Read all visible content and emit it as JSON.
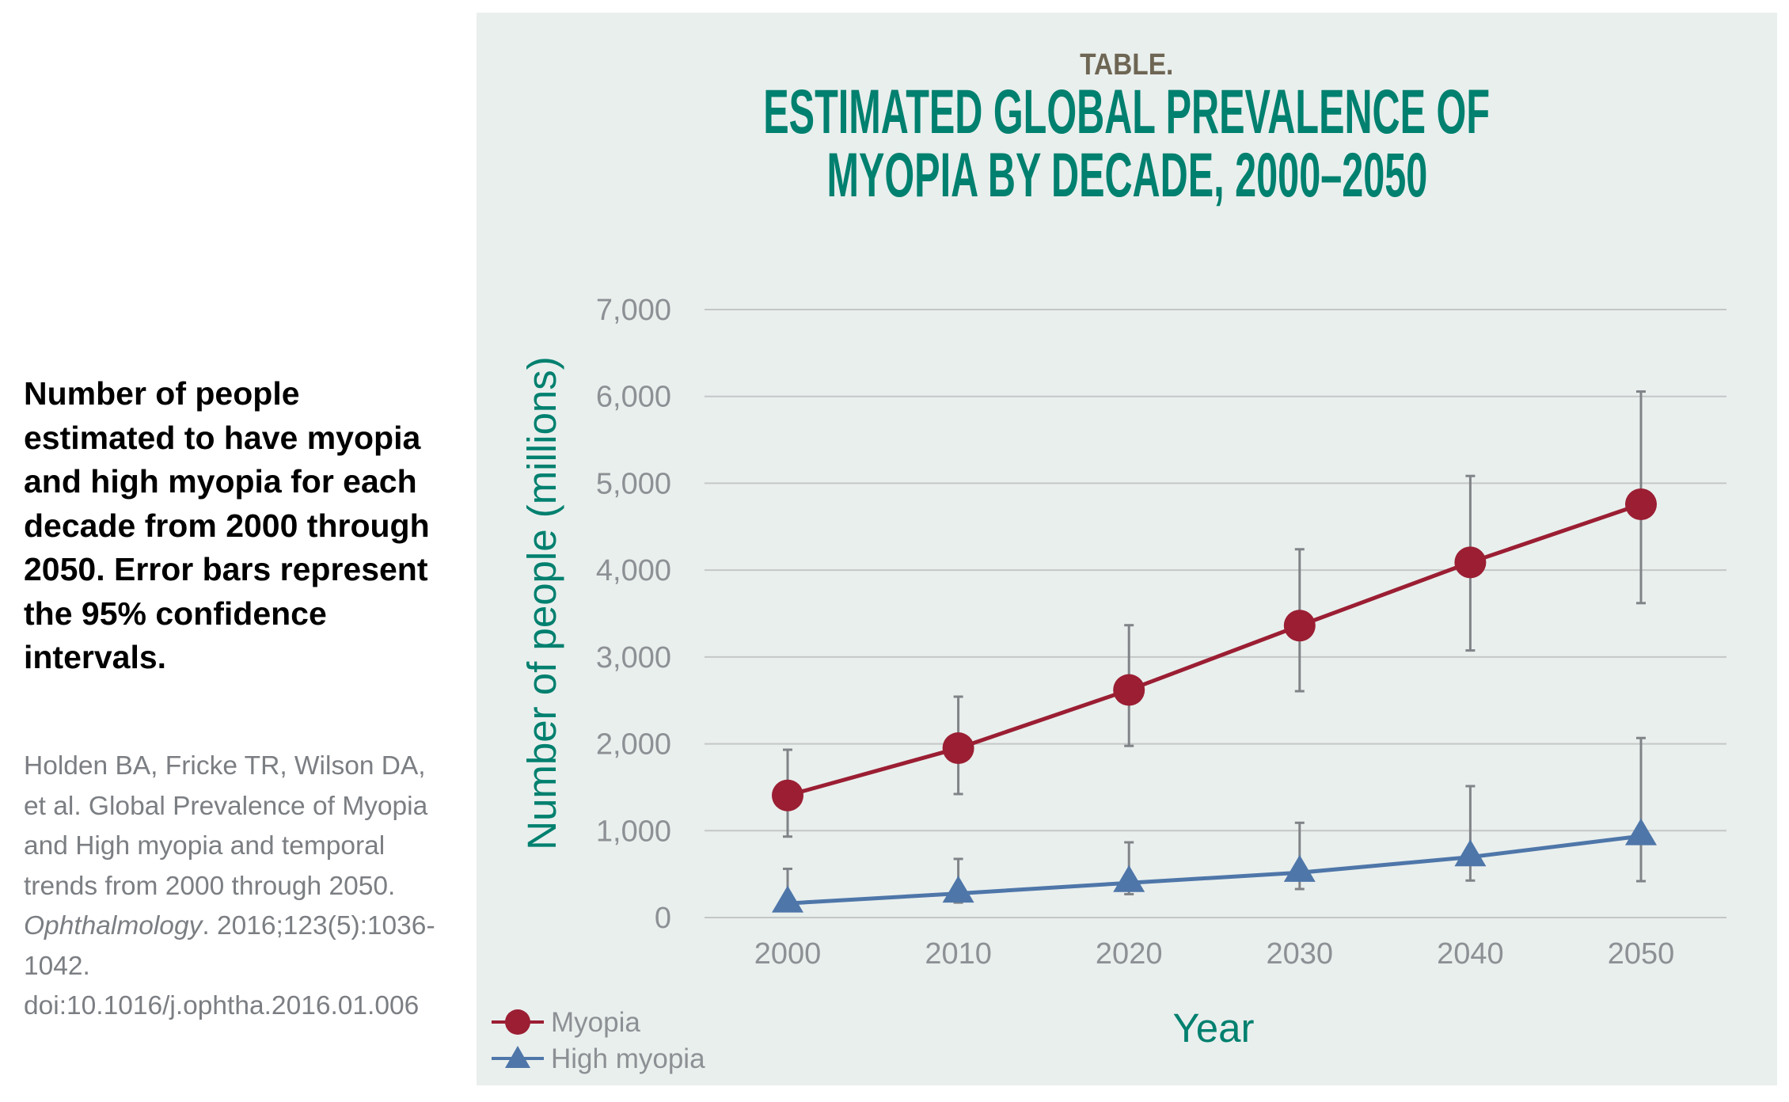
{
  "caption": {
    "text": "Number of people estimated to have myopia and high myopia for each decade from 2000 through 2050. Error bars represent the 95% confidence intervals."
  },
  "citation": {
    "before_journal": "Holden BA, Fricke TR, Wilson DA, et al. Global Prevalence of Myopia and High myopia and temporal trends from 2000 through 2050. ",
    "journal": "Ophthalmology",
    "after_journal": ". 2016;123(5):1036-1042. doi:10.1016/j.ophtha.2016.01.006"
  },
  "panel": {
    "kicker": "TABLE.",
    "title_line1": "ESTIMATED GLOBAL PREVALENCE OF",
    "title_line2": "MYOPIA BY DECADE, 2000–2050"
  },
  "colors": {
    "panel_bg": "#e9efed",
    "title": "#00806f",
    "kicker": "#6e6654",
    "myopia": "#9b1e33",
    "high_myopia": "#4e76a9",
    "error_bar": "#808387",
    "gridline": "#c4c7c7",
    "tick_text": "#8d9094"
  },
  "chart_data": {
    "type": "line",
    "title": "ESTIMATED GLOBAL PREVALENCE OF MYOPIA BY DECADE, 2000–2050",
    "xlabel": "Year",
    "ylabel": "Number of people (millions)",
    "categories": [
      "2000",
      "2010",
      "2020",
      "2030",
      "2040",
      "2050"
    ],
    "ylim": [
      0,
      7000
    ],
    "yticks": [
      0,
      1000,
      2000,
      3000,
      4000,
      5000,
      6000,
      7000
    ],
    "ytick_labels": [
      "0",
      "1,000",
      "2,000",
      "3,000",
      "4,000",
      "5,000",
      "6,000",
      "7,000"
    ],
    "grid": true,
    "legend_position": "bottom-left",
    "series": [
      {
        "name": "Myopia",
        "marker": "circle",
        "values": [
          1406,
          1950,
          2620,
          3361,
          4089,
          4758
        ],
        "ci_low": [
          932,
          1422,
          1976,
          2606,
          3075,
          3620
        ],
        "ci_high": [
          1932,
          2543,
          3366,
          4240,
          5084,
          6056
        ]
      },
      {
        "name": "High myopia",
        "marker": "triangle",
        "values": [
          163,
          277,
          399,
          517,
          696,
          938
        ],
        "ci_low": [
          86,
          172,
          269,
          328,
          426,
          419
        ],
        "ci_high": [
          561,
          675,
          866,
          1091,
          1513,
          2067
        ]
      }
    ]
  }
}
